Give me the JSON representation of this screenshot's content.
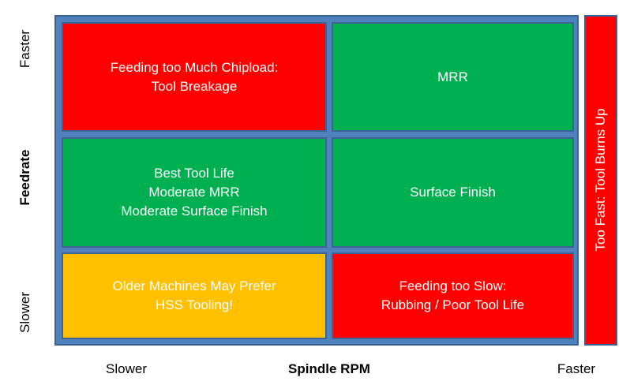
{
  "y_axis": {
    "title": "Feedrate",
    "top_label": "Faster",
    "bottom_label": "Slower"
  },
  "x_axis": {
    "title": "Spindle RPM",
    "left_label": "Slower",
    "right_label": "Faster"
  },
  "side_bar": {
    "label": "Too Fast: Tool Burns Up",
    "color": "#ff0000"
  },
  "cells": {
    "top_left": {
      "lines": [
        "Feeding too Much Chipload:",
        "Tool Breakage"
      ],
      "color": "#ff0000"
    },
    "top_right": {
      "lines": [
        "MRR"
      ],
      "color": "#00b050"
    },
    "mid_left": {
      "lines": [
        "Best Tool Life",
        "Moderate MRR",
        "Moderate Surface Finish"
      ],
      "color": "#00b050"
    },
    "mid_right": {
      "lines": [
        "Surface Finish"
      ],
      "color": "#00b050"
    },
    "bottom_left": {
      "lines": [
        "Older Machines May Prefer",
        "HSS Tooling!"
      ],
      "color": "#ffc000"
    },
    "bottom_right": {
      "lines": [
        "Feeding too Slow:",
        "Rubbing / Poor Tool Life"
      ],
      "color": "#ff0000"
    }
  },
  "colors": {
    "frame": "#4f81bd",
    "red": "#ff0000",
    "green": "#00b050",
    "amber": "#ffc000"
  }
}
